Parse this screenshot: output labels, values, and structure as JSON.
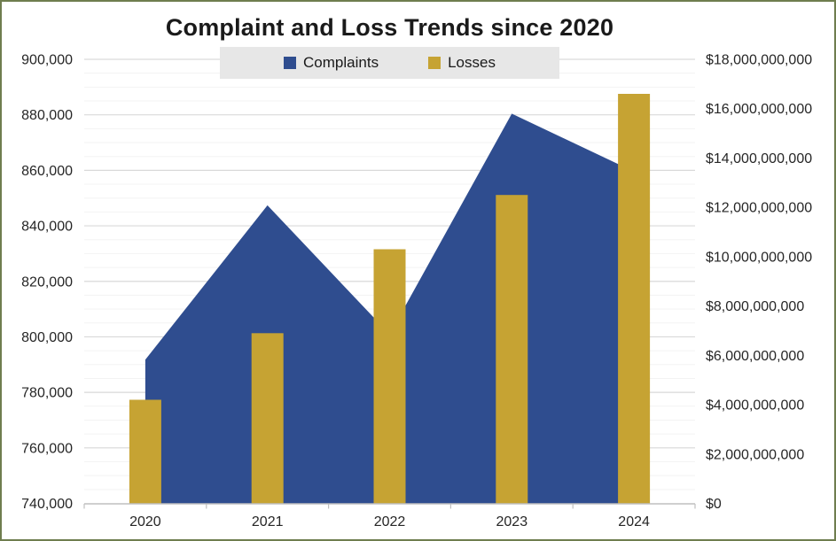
{
  "page": {
    "border_color": "#6F7D4F",
    "background": "#FFFFFF"
  },
  "chart_data": {
    "type": "combo",
    "title": "Complaint and Loss Trends since 2020",
    "categories": [
      "2020",
      "2021",
      "2022",
      "2023",
      "2024"
    ],
    "series": [
      {
        "name": "Complaints",
        "chart": "area",
        "axis": "left",
        "color": "#2F4D8F",
        "values": [
          791790,
          847376,
          800944,
          880418,
          859532
        ]
      },
      {
        "name": "Losses",
        "chart": "bar",
        "axis": "right",
        "color": "#C6A333",
        "values": [
          4200000000,
          6900000000,
          10300000000,
          12500000000,
          16600000000
        ]
      }
    ],
    "left_axis": {
      "min": 740000,
      "max": 900000,
      "major_step": 20000,
      "minor_step": 5000,
      "ticks": [
        {
          "value": 900000,
          "label": "900,000"
        },
        {
          "value": 880000,
          "label": "880,000"
        },
        {
          "value": 860000,
          "label": "860,000"
        },
        {
          "value": 840000,
          "label": "840,000"
        },
        {
          "value": 820000,
          "label": "820,000"
        },
        {
          "value": 800000,
          "label": "800,000"
        },
        {
          "value": 780000,
          "label": "780,000"
        },
        {
          "value": 760000,
          "label": "760,000"
        },
        {
          "value": 740000,
          "label": "740,000"
        }
      ]
    },
    "right_axis": {
      "min": 0,
      "max": 18000000000,
      "major_step": 2000000000,
      "ticks": [
        {
          "value": 18000000000,
          "label": "$18,000,000,000"
        },
        {
          "value": 16000000000,
          "label": "$16,000,000,000"
        },
        {
          "value": 14000000000,
          "label": "$14,000,000,000"
        },
        {
          "value": 12000000000,
          "label": "$12,000,000,000"
        },
        {
          "value": 10000000000,
          "label": "$10,000,000,000"
        },
        {
          "value": 8000000000,
          "label": "$8,000,000,000"
        },
        {
          "value": 6000000000,
          "label": "$6,000,000,000"
        },
        {
          "value": 4000000000,
          "label": "$4,000,000,000"
        },
        {
          "value": 2000000000,
          "label": "$2,000,000,000"
        },
        {
          "value": 0,
          "label": "$0"
        }
      ]
    },
    "legend": {
      "position": "top",
      "background": "#E7E7E7",
      "items": [
        {
          "label": "Complaints",
          "color": "#2F4D8F"
        },
        {
          "label": "Losses",
          "color": "#C6A333"
        }
      ]
    },
    "grid": {
      "major": true,
      "minor": true,
      "major_color": "#D9D9D9",
      "minor_color": "#F3F3F3",
      "axis_line_color": "#BFBFBF",
      "label_color": "#262626"
    }
  }
}
